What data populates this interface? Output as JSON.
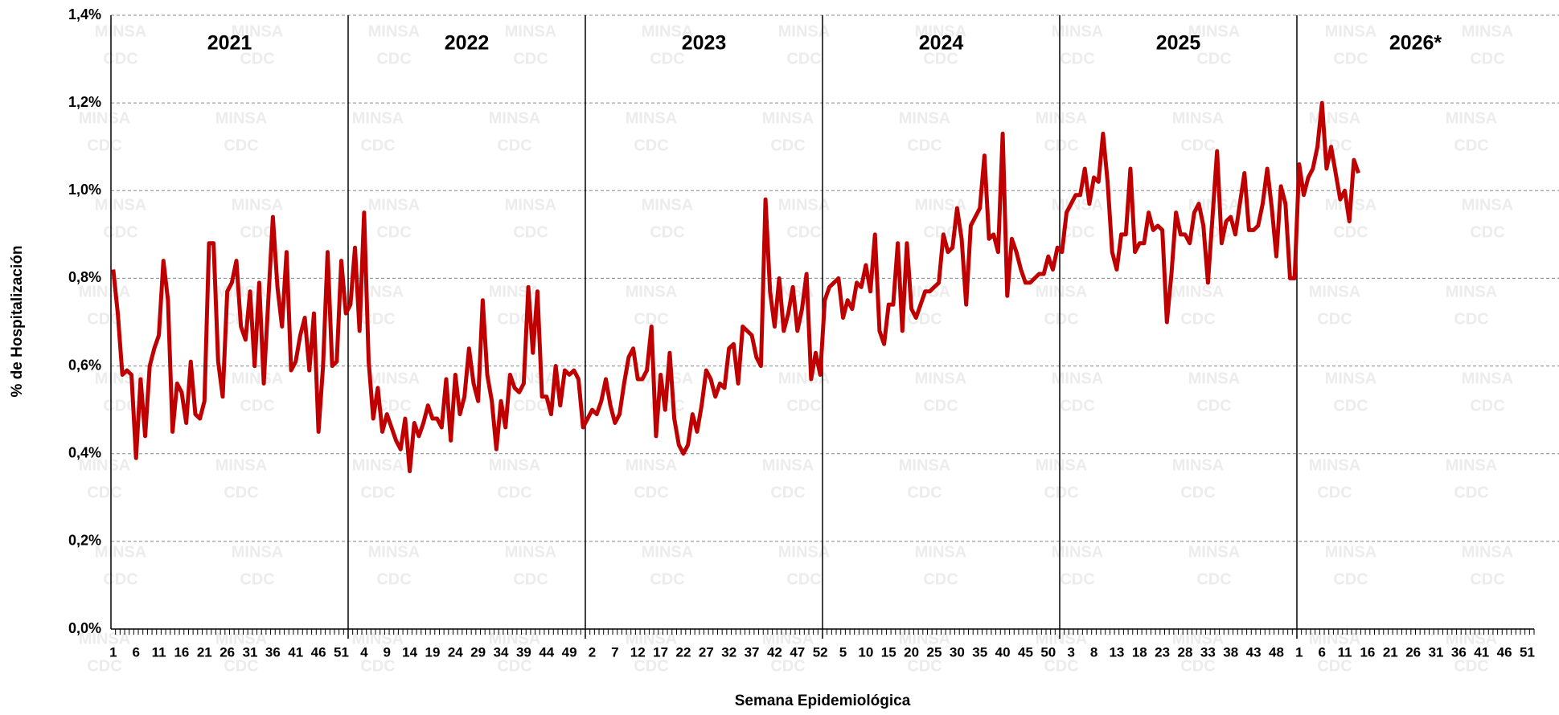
{
  "chart_data": {
    "type": "line",
    "xlabel": "Semana Epidemiológica",
    "ylabel": "% de Hospitalización",
    "watermark": [
      "MINSA",
      "CDC"
    ],
    "periods": [
      "2021",
      "2022",
      "2023",
      "2024",
      "2025",
      "2026*"
    ],
    "ylim": [
      0,
      1.4
    ],
    "yticks": [
      {
        "value": 0,
        "label": "0,0%"
      },
      {
        "value": 0.2,
        "label": "0,2%"
      },
      {
        "value": 0.4,
        "label": "0,4%"
      },
      {
        "value": 0.6,
        "label": "0,6%"
      },
      {
        "value": 0.8,
        "label": "0,8%"
      },
      {
        "value": 1.0,
        "label": "1,0%"
      },
      {
        "value": 1.2,
        "label": "1,2%"
      },
      {
        "value": 1.4,
        "label": "1,4%"
      }
    ],
    "grid": true,
    "categories": [
      "1",
      null,
      null,
      null,
      null,
      "6",
      null,
      null,
      null,
      null,
      "11",
      null,
      null,
      null,
      null,
      "16",
      null,
      null,
      null,
      null,
      "21",
      null,
      null,
      null,
      null,
      "26",
      null,
      null,
      null,
      null,
      "31",
      null,
      null,
      null,
      null,
      "36",
      null,
      null,
      null,
      null,
      "41",
      null,
      null,
      null,
      null,
      "46",
      null,
      null,
      null,
      null,
      "51",
      null,
      null,
      null,
      null,
      "4",
      null,
      null,
      null,
      null,
      "9",
      null,
      null,
      null,
      null,
      "14",
      null,
      null,
      null,
      null,
      "19",
      null,
      null,
      null,
      null,
      "24",
      null,
      null,
      null,
      null,
      "29",
      null,
      null,
      null,
      null,
      "34",
      null,
      null,
      null,
      null,
      "39",
      null,
      null,
      null,
      null,
      "44",
      null,
      null,
      null,
      null,
      "49",
      null,
      null,
      null,
      null,
      "2",
      null,
      null,
      null,
      null,
      "7",
      null,
      null,
      null,
      null,
      "12",
      null,
      null,
      null,
      null,
      "17",
      null,
      null,
      null,
      null,
      "22",
      null,
      null,
      null,
      null,
      "27",
      null,
      null,
      null,
      null,
      "32",
      null,
      null,
      null,
      null,
      "37",
      null,
      null,
      null,
      null,
      "42",
      null,
      null,
      null,
      null,
      "47",
      null,
      null,
      null,
      null,
      "52",
      null,
      null,
      null,
      null,
      "5",
      null,
      null,
      null,
      null,
      "10",
      null,
      null,
      null,
      null,
      "15",
      null,
      null,
      null,
      null,
      "20",
      null,
      null,
      null,
      null,
      "25",
      null,
      null,
      null,
      null,
      "30",
      null,
      null,
      null,
      null,
      "35",
      null,
      null,
      null,
      null,
      "40",
      null,
      null,
      null,
      null,
      "45",
      null,
      null,
      null,
      null,
      "50",
      null,
      null,
      null,
      null,
      "3",
      null,
      null,
      null,
      null,
      "8",
      null,
      null,
      null,
      null,
      "13",
      null,
      null,
      null,
      null,
      "18",
      null,
      null,
      null,
      null,
      "23",
      null,
      null,
      null,
      null,
      "28",
      null,
      null,
      null,
      null,
      "33",
      null,
      null,
      null,
      null,
      "38",
      null,
      null,
      null,
      null,
      "43",
      null,
      null,
      null,
      null,
      "48",
      null,
      null,
      null,
      null,
      "1",
      null,
      null,
      null,
      null,
      "6",
      null,
      null,
      null,
      null,
      "11",
      null,
      null,
      null,
      null,
      "16",
      null,
      null,
      null,
      null,
      "21",
      null,
      null,
      null,
      null,
      "26",
      null,
      null,
      null,
      null,
      "31",
      null,
      null,
      null,
      null,
      "36",
      null,
      null,
      null,
      null,
      "41",
      null,
      null,
      null,
      null,
      "46",
      null,
      null,
      null,
      null,
      "51",
      null
    ],
    "series": [
      {
        "name": "% de Hospitalización",
        "color": "#c00000",
        "values": [
          0.82,
          0.72,
          0.58,
          0.59,
          0.58,
          0.39,
          0.57,
          0.44,
          0.6,
          0.64,
          0.67,
          0.84,
          0.75,
          0.45,
          0.56,
          0.54,
          0.47,
          0.61,
          0.49,
          0.48,
          0.52,
          0.88,
          0.88,
          0.61,
          0.53,
          0.77,
          0.79,
          0.84,
          0.69,
          0.66,
          0.77,
          0.6,
          0.79,
          0.56,
          0.75,
          0.94,
          0.78,
          0.69,
          0.86,
          0.59,
          0.61,
          0.67,
          0.71,
          0.59,
          0.72,
          0.45,
          0.6,
          0.86,
          0.6,
          0.61,
          0.84,
          0.72,
          0.74,
          0.87,
          0.68,
          0.95,
          0.61,
          0.48,
          0.55,
          0.45,
          0.49,
          0.46,
          0.43,
          0.41,
          0.48,
          0.36,
          0.47,
          0.44,
          0.47,
          0.51,
          0.48,
          0.48,
          0.46,
          0.57,
          0.43,
          0.58,
          0.49,
          0.53,
          0.64,
          0.56,
          0.52,
          0.75,
          0.58,
          0.52,
          0.41,
          0.52,
          0.46,
          0.58,
          0.55,
          0.54,
          0.56,
          0.78,
          0.63,
          0.77,
          0.53,
          0.53,
          0.49,
          0.6,
          0.51,
          0.59,
          0.58,
          0.59,
          0.57,
          0.46,
          0.48,
          0.5,
          0.49,
          0.52,
          0.57,
          0.51,
          0.47,
          0.49,
          0.56,
          0.62,
          0.64,
          0.57,
          0.57,
          0.59,
          0.69,
          0.44,
          0.58,
          0.5,
          0.63,
          0.48,
          0.42,
          0.4,
          0.42,
          0.49,
          0.45,
          0.51,
          0.59,
          0.57,
          0.53,
          0.56,
          0.55,
          0.64,
          0.65,
          0.56,
          0.69,
          0.68,
          0.67,
          0.62,
          0.6,
          0.98,
          0.77,
          0.69,
          0.8,
          0.68,
          0.72,
          0.78,
          0.68,
          0.73,
          0.81,
          0.57,
          0.63,
          0.58,
          0.75,
          0.78,
          0.79,
          0.8,
          0.71,
          0.75,
          0.73,
          0.79,
          0.78,
          0.83,
          0.77,
          0.9,
          0.68,
          0.65,
          0.74,
          0.74,
          0.88,
          0.68,
          0.88,
          0.73,
          0.71,
          0.74,
          0.77,
          0.77,
          0.78,
          0.79,
          0.9,
          0.86,
          0.87,
          0.96,
          0.89,
          0.74,
          0.92,
          0.94,
          0.96,
          1.08,
          0.89,
          0.9,
          0.86,
          1.13,
          0.76,
          0.89,
          0.86,
          0.82,
          0.79,
          0.79,
          0.8,
          0.81,
          0.81,
          0.85,
          0.82,
          0.87,
          0.86,
          0.95,
          0.97,
          0.99,
          0.99,
          1.05,
          0.97,
          1.03,
          1.02,
          1.13,
          1.02,
          0.86,
          0.82,
          0.9,
          0.9,
          1.05,
          0.86,
          0.88,
          0.88,
          0.95,
          0.91,
          0.92,
          0.91,
          0.7,
          0.81,
          0.95,
          0.9,
          0.9,
          0.88,
          0.95,
          0.97,
          0.92,
          0.79,
          0.94,
          1.09,
          0.88,
          0.93,
          0.94,
          0.9,
          0.97,
          1.04,
          0.91,
          0.91,
          0.92,
          0.97,
          1.05,
          0.96,
          0.85,
          1.01,
          0.97,
          0.8,
          0.8,
          1.06,
          0.99,
          1.03,
          1.05,
          1.1,
          1.2,
          1.05,
          1.1,
          1.04,
          0.98,
          1.0,
          0.93,
          1.07,
          1.04,
          null,
          null,
          null,
          null,
          null,
          null,
          null,
          null,
          null,
          null,
          null,
          null,
          null,
          null,
          null,
          null,
          null,
          null,
          null,
          null,
          null,
          null,
          null,
          null,
          null,
          null,
          null,
          null,
          null,
          null,
          null,
          null,
          null,
          null,
          null,
          null,
          null,
          null
        ]
      }
    ]
  }
}
